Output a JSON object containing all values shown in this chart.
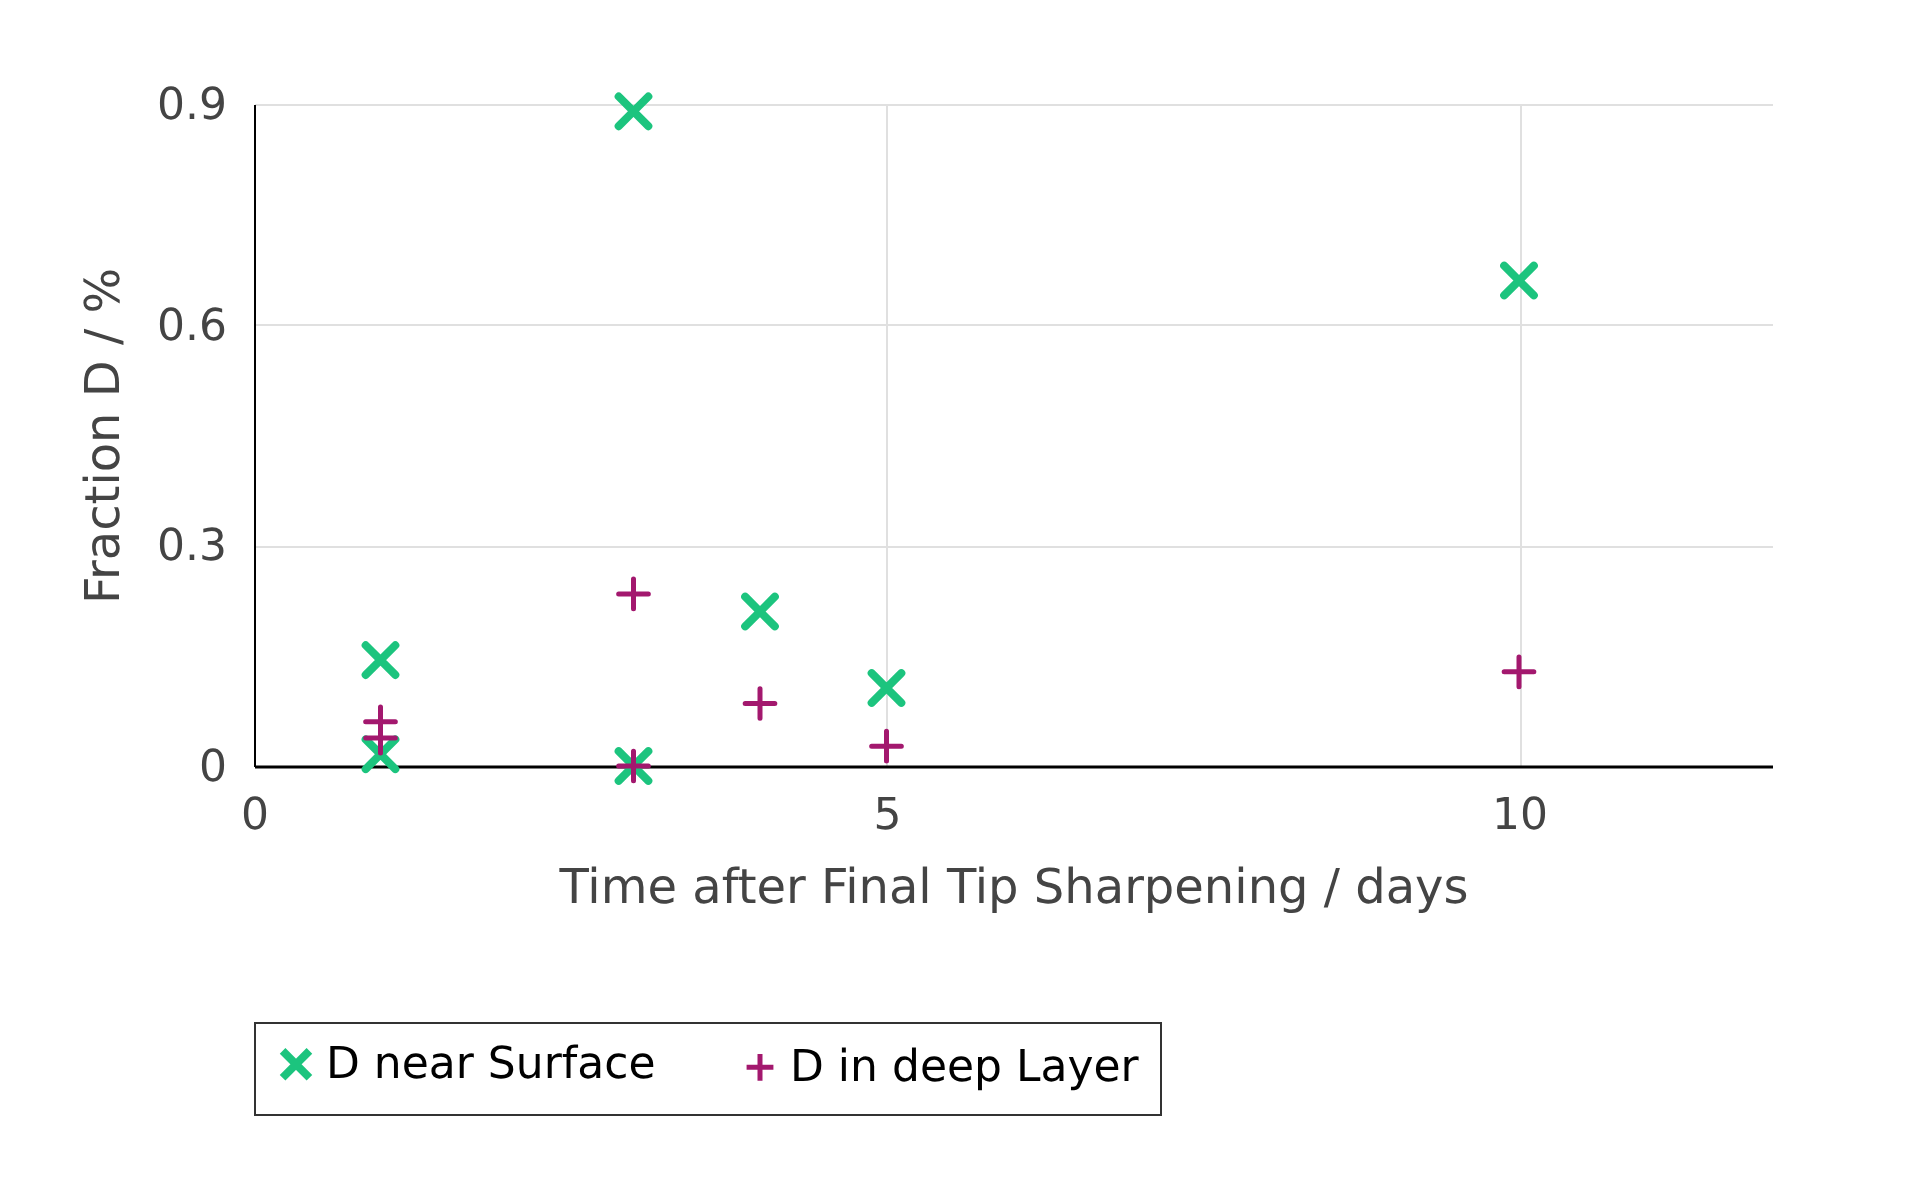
{
  "chart_data": {
    "type": "scatter",
    "xlabel": "Time after Final Tip Sharpening / days",
    "ylabel": "Fraction D / %",
    "xlim": [
      0,
      12
    ],
    "xticks": [
      0,
      5,
      10
    ],
    "ylim": [
      0,
      0.9
    ],
    "yticks": [
      0,
      0.3,
      0.6,
      0.9
    ],
    "grid": true,
    "legend": "bottom",
    "series": [
      {
        "name": "D near Surface",
        "color": "#1cc47e",
        "marker": "x",
        "x": [
          1,
          1,
          3,
          3,
          4,
          5,
          10
        ],
        "values": [
          0.144,
          0.016,
          0.89,
          0.0,
          0.21,
          0.106,
          0.66
        ]
      },
      {
        "name": "D in deep Layer",
        "color": "#a3186e",
        "marker": "cross",
        "x": [
          1,
          1,
          3,
          3,
          4,
          5,
          10
        ],
        "values": [
          0.06,
          0.038,
          0.234,
          0.0,
          0.085,
          0.027,
          0.128
        ]
      }
    ]
  }
}
